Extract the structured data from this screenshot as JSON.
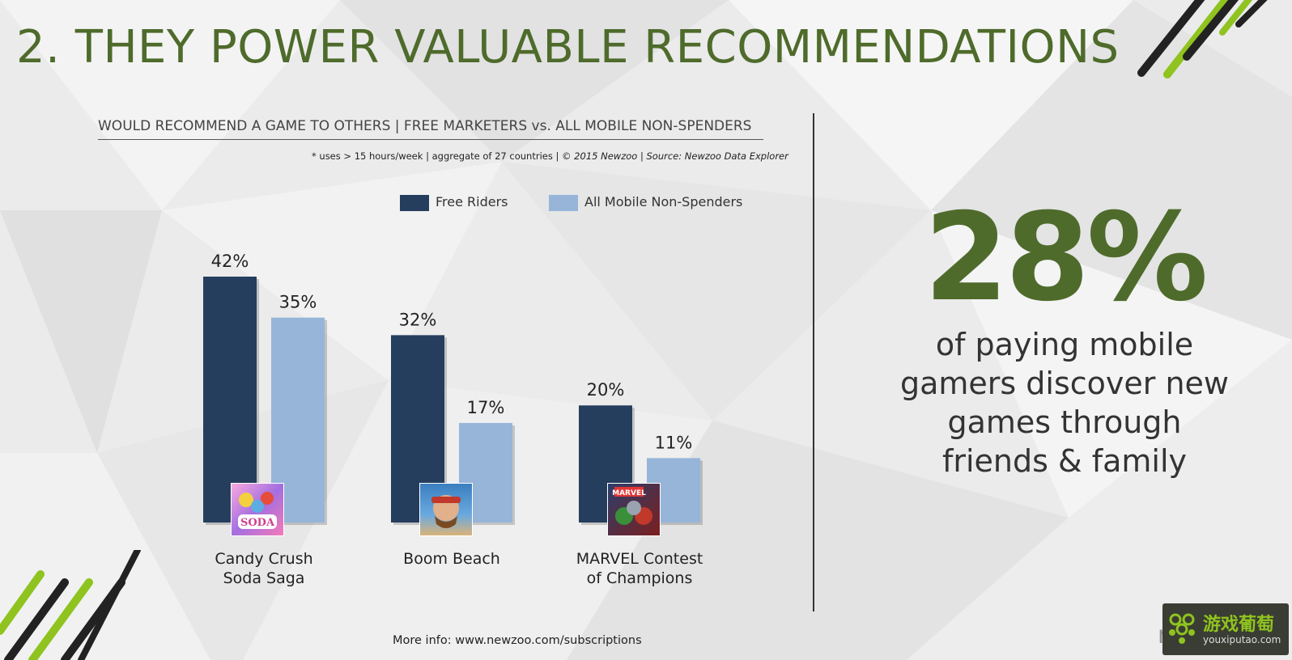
{
  "slide": {
    "title": "2. THEY POWER VALUABLE RECOMMENDATIONS",
    "headline_value": "28%",
    "headline_text": "of paying mobile gamers discover new games through friends & family",
    "footer": "More info: www.newzoo.com/subscriptions",
    "watermark": {
      "name": "游戏葡萄",
      "url": "youxiputao.com",
      "partial_text": "nw"
    }
  },
  "chart_data": {
    "type": "bar",
    "title": "WOULD RECOMMEND A GAME TO OTHERS | FREE MARKETERS vs. ALL MOBILE NON-SPENDERS",
    "note": "* uses > 15 hours/week  | aggregate of 27 countries | ",
    "note_italic": "© 2015 Newzoo | Source: Newzoo Data Explorer",
    "categories": [
      "Candy Crush Soda Saga",
      "Boom Beach",
      "MARVEL Contest of Champions"
    ],
    "category_lines": [
      [
        "Candy Crush",
        "Soda Saga"
      ],
      [
        "Boom Beach"
      ],
      [
        "MARVEL Contest",
        "of Champions"
      ]
    ],
    "category_icons": [
      "candy-crush-soda-icon",
      "boom-beach-icon",
      "marvel-contest-icon"
    ],
    "series": [
      {
        "name": "Free Riders",
        "values": [
          42,
          32,
          20
        ],
        "labels": [
          "42%",
          "32%",
          "20%"
        ],
        "color": "#263e5e"
      },
      {
        "name": "All Mobile Non-Spenders",
        "values": [
          35,
          17,
          11
        ],
        "labels": [
          "35%",
          "17%",
          "11%"
        ],
        "color": "#96b5d9"
      }
    ],
    "ylim": [
      0,
      42
    ],
    "unit": "%",
    "legend": "top-center",
    "grid": false
  },
  "colors": {
    "accent_green": "#4e6b2b",
    "dark_blue": "#263e5e",
    "light_blue": "#96b5d9"
  }
}
